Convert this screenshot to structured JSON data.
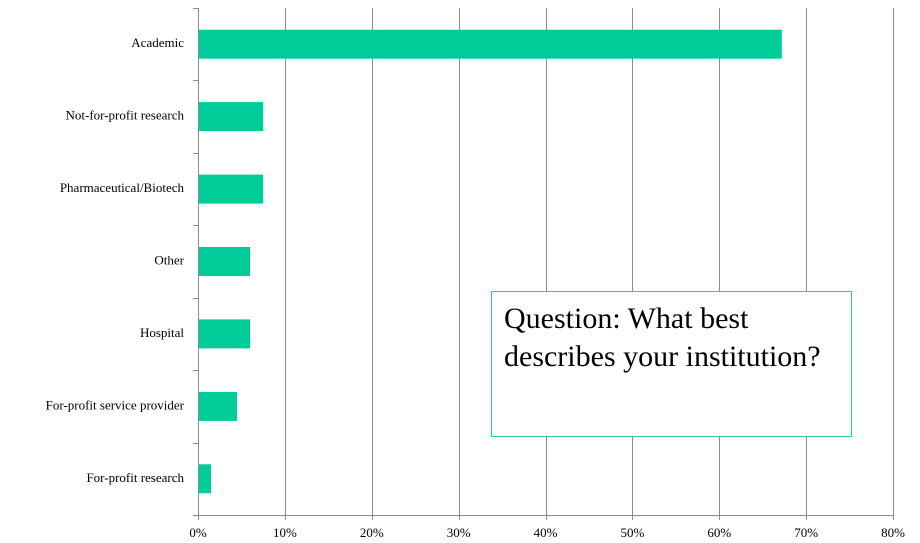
{
  "chart_data": {
    "type": "bar",
    "orientation": "horizontal",
    "categories": [
      "Academic",
      "Not-for-profit research",
      "Pharmaceutical/Biotech",
      "Other",
      "Hospital",
      "For-profit service provider",
      "For-profit research"
    ],
    "values": [
      67.2,
      7.5,
      7.5,
      6.0,
      6.0,
      4.5,
      1.5
    ],
    "xlim": [
      0,
      80
    ],
    "xticks": [
      0,
      10,
      20,
      30,
      40,
      50,
      60,
      70,
      80
    ],
    "xtick_labels": [
      "0%",
      "10%",
      "20%",
      "30%",
      "40%",
      "50%",
      "60%",
      "70%",
      "80%"
    ],
    "bar_color": "#00cc99",
    "grid": true,
    "annotation": "Question: What best describes your institution?"
  }
}
